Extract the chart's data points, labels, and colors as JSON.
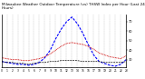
{
  "title1": "Milwaukee Weather Outdoor Temperature (vs) THSW Index per Hour (Last 24 Hours)",
  "hours": [
    0,
    1,
    2,
    3,
    4,
    5,
    6,
    7,
    8,
    9,
    10,
    11,
    12,
    13,
    14,
    15,
    16,
    17,
    18,
    19,
    20,
    21,
    22,
    23
  ],
  "outdoor_temp": [
    32,
    31,
    30,
    30,
    29,
    29,
    30,
    31,
    33,
    36,
    40,
    44,
    47,
    48,
    47,
    46,
    44,
    41,
    37,
    35,
    33,
    32,
    31,
    34
  ],
  "thsw_index": [
    28,
    27,
    26,
    25,
    25,
    24,
    25,
    27,
    32,
    40,
    52,
    62,
    70,
    75,
    68,
    58,
    46,
    35,
    28,
    26,
    24,
    23,
    25,
    30
  ],
  "dew_point": [
    28,
    27,
    27,
    26,
    26,
    25,
    26,
    27,
    27,
    28,
    28,
    29,
    29,
    29,
    29,
    28,
    28,
    28,
    28,
    27,
    27,
    27,
    27,
    28
  ],
  "line_blue_color": "#0000ff",
  "line_red_color": "#cc0000",
  "line_black_color": "#111111",
  "bg_color": "#ffffff",
  "grid_color": "#888888",
  "ylim": [
    22,
    78
  ],
  "ytick_values": [
    30,
    40,
    50,
    60,
    70
  ],
  "ytick_labels": [
    "30",
    "40",
    "50",
    "60",
    "70"
  ],
  "xlim": [
    0,
    23
  ],
  "xticks": [
    0,
    1,
    2,
    3,
    4,
    5,
    6,
    7,
    8,
    9,
    10,
    11,
    12,
    13,
    14,
    15,
    16,
    17,
    18,
    19,
    20,
    21,
    22,
    23
  ],
  "title_fontsize": 3.0,
  "tick_fontsize": 2.5
}
